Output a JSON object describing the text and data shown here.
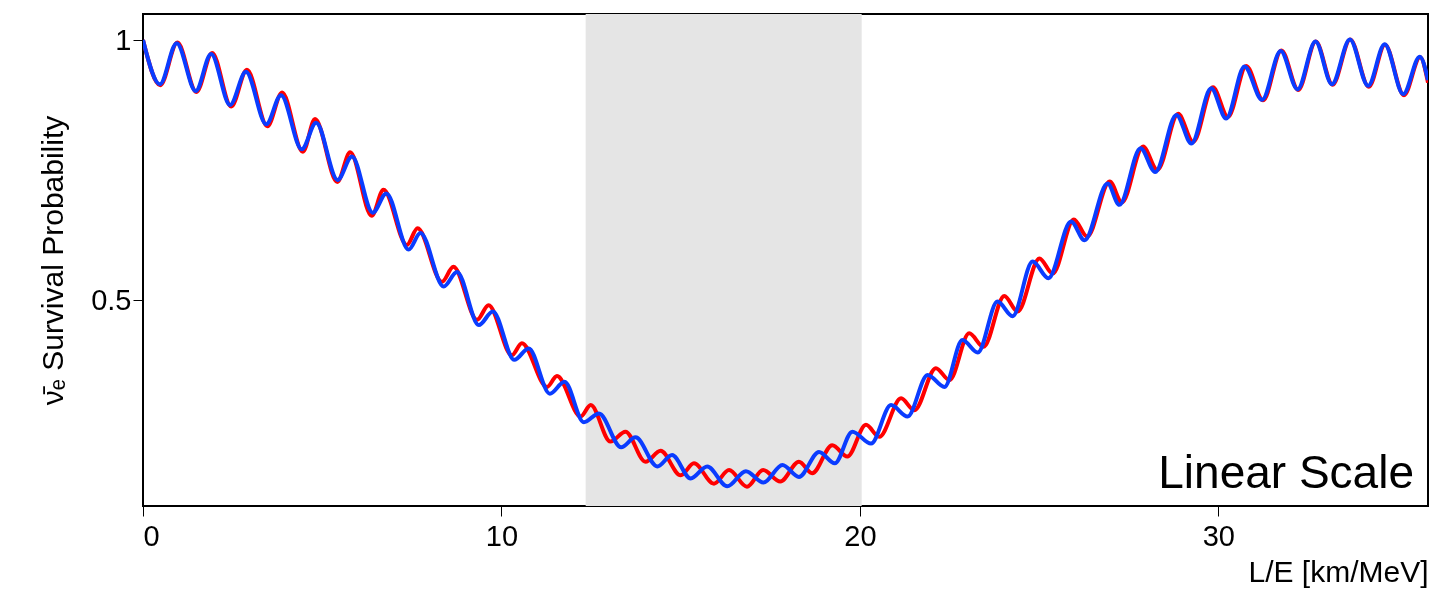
{
  "chart_data": {
    "type": "line",
    "ylabel": "ν̄ₑ Survival Probability",
    "xlabel": "L/E [km/MeV]",
    "xlim": [
      0,
      35.85
    ],
    "xticks": [
      0,
      10,
      20,
      30
    ],
    "ylim": [
      0.104,
      1.05
    ],
    "yticks": [
      0.5,
      1
    ],
    "grid": false,
    "marker": "none",
    "line_style": "solid",
    "bands": [
      {
        "axis": "x",
        "from": 12.35,
        "to": 20.05,
        "color": "#e5e5e5"
      }
    ],
    "annotations": [
      "Linear Scale"
    ],
    "series": [
      {
        "color": "#ff0000",
        "x": [
          0,
          0.48,
          0.96,
          1.49,
          1.93,
          2.46,
          2.9,
          3.47,
          3.88,
          4.46,
          4.8,
          5.42,
          5.78,
          6.38,
          6.71,
          7.36,
          7.66,
          8.34,
          8.66,
          9.32,
          9.64,
          10.29,
          10.57,
          11.27,
          11.55,
          12.21,
          12.49,
          13.04,
          13.46,
          14.02,
          14.44,
          15.0,
          15.37,
          15.93,
          16.35,
          16.85,
          17.3,
          17.78,
          18.3,
          18.67,
          19.23,
          19.65,
          20.17,
          20.54,
          21.15,
          21.52,
          22.12,
          22.5,
          23.05,
          23.45,
          24.03,
          24.4,
          25.01,
          25.38,
          25.97,
          26.34,
          26.97,
          27.31,
          27.9,
          28.3,
          28.88,
          29.3,
          29.85,
          30.27,
          30.78,
          31.25,
          31.76,
          32.23,
          32.72,
          33.19,
          33.68,
          34.2,
          34.65,
          35.18,
          35.63,
          35.85
        ],
        "values": [
          1.0,
          0.913,
          0.995,
          0.9,
          0.975,
          0.872,
          0.943,
          0.834,
          0.899,
          0.785,
          0.848,
          0.727,
          0.784,
          0.662,
          0.712,
          0.606,
          0.638,
          0.535,
          0.564,
          0.462,
          0.49,
          0.394,
          0.417,
          0.333,
          0.354,
          0.276,
          0.298,
          0.228,
          0.247,
          0.189,
          0.21,
          0.163,
          0.186,
          0.147,
          0.173,
          0.141,
          0.173,
          0.151,
          0.189,
          0.167,
          0.221,
          0.199,
          0.26,
          0.237,
          0.311,
          0.288,
          0.369,
          0.346,
          0.436,
          0.41,
          0.508,
          0.478,
          0.58,
          0.551,
          0.655,
          0.622,
          0.728,
          0.688,
          0.795,
          0.75,
          0.858,
          0.804,
          0.909,
          0.852,
          0.95,
          0.884,
          0.98,
          0.904,
          0.997,
          0.914,
          1.001,
          0.91,
          0.991,
          0.894,
          0.967,
          0.918
        ]
      },
      {
        "color": "#0a3cff",
        "x": [
          0,
          0.47,
          0.94,
          1.47,
          1.9,
          2.43,
          2.87,
          3.44,
          3.85,
          4.43,
          4.83,
          5.43,
          5.83,
          6.41,
          6.79,
          7.41,
          7.74,
          8.39,
          8.76,
          9.37,
          9.76,
          10.36,
          10.76,
          11.35,
          11.76,
          12.3,
          12.72,
          13.34,
          13.74,
          14.35,
          14.76,
          15.28,
          15.74,
          16.3,
          16.82,
          17.31,
          17.84,
          18.3,
          18.86,
          19.3,
          19.79,
          20.31,
          20.87,
          21.33,
          21.89,
          22.36,
          22.86,
          23.29,
          23.84,
          24.26,
          24.82,
          25.26,
          25.89,
          26.27,
          26.91,
          27.24,
          27.83,
          28.24,
          28.83,
          29.25,
          29.8,
          30.22,
          30.73,
          31.22,
          31.74,
          32.21,
          32.71,
          33.17,
          33.67,
          34.18,
          34.64,
          35.16,
          35.62,
          35.85
        ],
        "values": [
          1.0,
          0.915,
          0.994,
          0.902,
          0.973,
          0.875,
          0.939,
          0.838,
          0.894,
          0.79,
          0.841,
          0.731,
          0.776,
          0.668,
          0.705,
          0.597,
          0.629,
          0.526,
          0.554,
          0.452,
          0.478,
          0.385,
          0.407,
          0.32,
          0.343,
          0.265,
          0.282,
          0.217,
          0.236,
          0.18,
          0.202,
          0.157,
          0.18,
          0.142,
          0.171,
          0.149,
          0.183,
          0.16,
          0.208,
          0.186,
          0.247,
          0.224,
          0.298,
          0.276,
          0.356,
          0.333,
          0.423,
          0.399,
          0.497,
          0.469,
          0.574,
          0.542,
          0.651,
          0.615,
          0.724,
          0.683,
          0.792,
          0.746,
          0.856,
          0.801,
          0.907,
          0.849,
          0.949,
          0.885,
          0.979,
          0.905,
          0.997,
          0.915,
          1.001,
          0.912,
          0.992,
          0.896,
          0.968,
          0.923
        ]
      }
    ]
  }
}
